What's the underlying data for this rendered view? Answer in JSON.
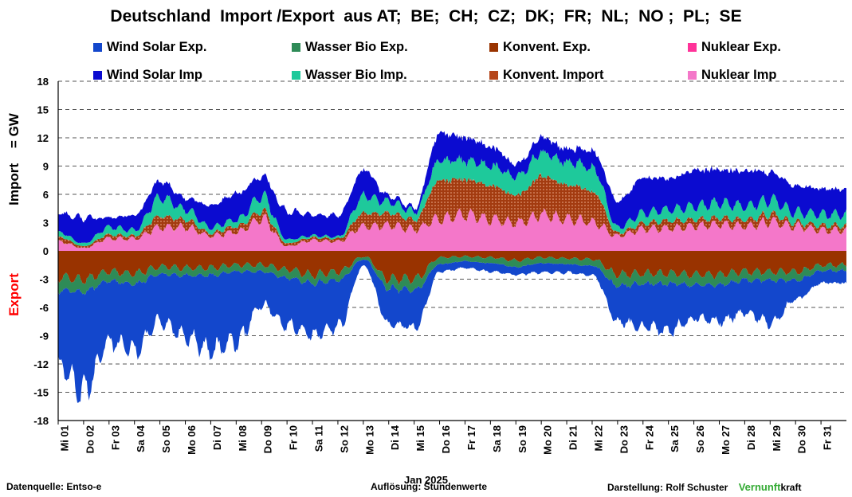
{
  "chart_data": {
    "type": "area",
    "title": "Deutschland  Import /Export  aus AT;  BE;  CH;  CZ;  DK;  FR;  NL;  NO ;  PL;  SE",
    "ylabel_import": "Import    = GW",
    "ylabel_export": "Export",
    "xlabel": "Jan 2025",
    "ylim": [
      -18,
      18
    ],
    "yticks": [
      "18",
      "15",
      "12",
      "9",
      "6",
      "3",
      "0",
      "-3",
      "-6",
      "-9",
      "-12",
      "-15",
      "-18"
    ],
    "grid": "dashed horizontal",
    "legend_position": "top",
    "categories": [
      "Mi 01",
      "Do 02",
      "Fr 03",
      "Sa 04",
      "So 05",
      "Mo 06",
      "Di 07",
      "Mi 08",
      "Do 09",
      "Fr 10",
      "Sa 11",
      "So 12",
      "Mo 13",
      "Di 14",
      "Mi 15",
      "Do 16",
      "Fr 17",
      "Sa 18",
      "So 19",
      "Mo 20",
      "Di 21",
      "Mi 22",
      "Do 23",
      "Fr 24",
      "Sa 25",
      "So 26",
      "Mo 27",
      "Di 28",
      "Mi 29",
      "Do 30",
      "Fr 31"
    ],
    "series": [
      {
        "name": "Nuklear Imp",
        "color": "#f477c9",
        "values": [
          1.0,
          0.3,
          1.3,
          1.3,
          2.5,
          2.5,
          1.6,
          2.0,
          3.4,
          0.5,
          1.1,
          1.0,
          2.6,
          2.7,
          2.3,
          3.4,
          3.8,
          3.3,
          3.0,
          3.8,
          3.4,
          3.0,
          1.6,
          2.3,
          2.4,
          2.6,
          2.8,
          2.6,
          3.1,
          2.6,
          2.2
        ]
      },
      {
        "name": "Konvent. Import",
        "color": "#b5461a",
        "values": [
          0.5,
          0.2,
          0.4,
          0.3,
          1.2,
          0.8,
          0.3,
          0.6,
          0.8,
          0.3,
          0.3,
          0.3,
          1.4,
          1.3,
          1.0,
          4.1,
          3.8,
          3.6,
          2.9,
          4.1,
          3.6,
          3.3,
          0.3,
          0.6,
          0.8,
          0.7,
          0.7,
          0.7,
          0.8,
          0.4,
          0.5
        ]
      },
      {
        "name": "Wasser Bio Imp.",
        "color": "#1ec99b",
        "values": [
          0.5,
          0.3,
          0.8,
          0.6,
          2.0,
          1.1,
          0.6,
          0.7,
          1.6,
          0.4,
          0.2,
          0.2,
          1.8,
          1.2,
          0.9,
          2.1,
          2.0,
          2.1,
          2.0,
          2.5,
          2.4,
          2.5,
          0.6,
          1.1,
          1.2,
          1.4,
          1.6,
          1.4,
          1.5,
          1.1,
          1.2
        ]
      },
      {
        "name": "Wind Solar Imp",
        "color": "#0b0bd0",
        "values": [
          2.0,
          2.7,
          1.0,
          1.6,
          1.7,
          1.2,
          2.3,
          2.8,
          2.1,
          3.0,
          2.2,
          2.3,
          2.8,
          0.6,
          0.4,
          2.9,
          2.4,
          2.0,
          1.3,
          1.6,
          1.4,
          1.8,
          2.8,
          3.7,
          3.3,
          3.8,
          3.5,
          3.8,
          2.9,
          2.8,
          2.7
        ]
      },
      {
        "name": "Konvent. Exp.",
        "color": "#993300",
        "values": [
          -2.8,
          -3.0,
          -2.2,
          -2.4,
          -1.7,
          -1.8,
          -1.8,
          -1.5,
          -1.5,
          -2.0,
          -2.5,
          -2.2,
          -0.6,
          -3.0,
          -3.0,
          -0.7,
          -0.6,
          -0.7,
          -1.0,
          -0.7,
          -0.8,
          -0.9,
          -2.5,
          -2.4,
          -2.4,
          -2.5,
          -2.5,
          -2.2,
          -2.2,
          -2.2,
          -1.5
        ]
      },
      {
        "name": "Wasser Bio Exp.",
        "color": "#2e8b57",
        "values": [
          -1.4,
          -1.3,
          -1.0,
          -1.1,
          -0.8,
          -0.8,
          -0.8,
          -0.7,
          -0.7,
          -0.9,
          -0.9,
          -0.9,
          -0.3,
          -1.0,
          -1.2,
          -0.7,
          -0.5,
          -0.6,
          -0.7,
          -0.6,
          -0.6,
          -0.7,
          -1.2,
          -1.1,
          -1.1,
          -1.1,
          -1.1,
          -0.9,
          -0.9,
          -0.9,
          -0.6
        ]
      },
      {
        "name": "Nuklear Exp.",
        "color": "#ff3399",
        "values": [
          0,
          0,
          0,
          0,
          0,
          0,
          0,
          0,
          0,
          0,
          0,
          0,
          0,
          0,
          0,
          0,
          0,
          0,
          0,
          0,
          0,
          0,
          0,
          0,
          0,
          0,
          0,
          0,
          0,
          0,
          0
        ]
      },
      {
        "name": "Wind Solar Exp.",
        "color": "#1347cc",
        "values": [
          -8.0,
          -10.5,
          -6.5,
          -7.0,
          -5.0,
          -6.5,
          -8.0,
          -7.5,
          -3.5,
          -5.0,
          -5.5,
          -5.0,
          -0.7,
          -3.8,
          -4.0,
          -0.8,
          -0.7,
          -0.9,
          -0.8,
          -1.0,
          -0.9,
          -1.0,
          -3.8,
          -4.5,
          -5.0,
          -3.5,
          -3.8,
          -3.5,
          -4.5,
          -2.0,
          -1.3
        ]
      }
    ]
  },
  "legend": [
    {
      "label": "Wind Solar Exp.",
      "color": "#1347cc"
    },
    {
      "label": "Wasser Bio Exp.",
      "color": "#2e8b57"
    },
    {
      "label": "Konvent. Exp.",
      "color": "#993300"
    },
    {
      "label": "Nuklear Exp.",
      "color": "#ff3399"
    },
    {
      "label": "Wind Solar Imp",
      "color": "#0b0bd0"
    },
    {
      "label": "Wasser Bio Imp.",
      "color": "#1ec99b"
    },
    {
      "label": "Konvent. Import",
      "color": "#b5461a"
    },
    {
      "label": "Nuklear Imp",
      "color": "#f477c9"
    }
  ],
  "footer": {
    "source": "Datenquelle: Entso-e",
    "resolution": "Auflösung: Stundenwerte",
    "credit": "Darstellung:  Rolf Schuster",
    "brand_a": "Vernunft",
    "brand_b": "kraft",
    "brand_color": "#33aa33"
  }
}
